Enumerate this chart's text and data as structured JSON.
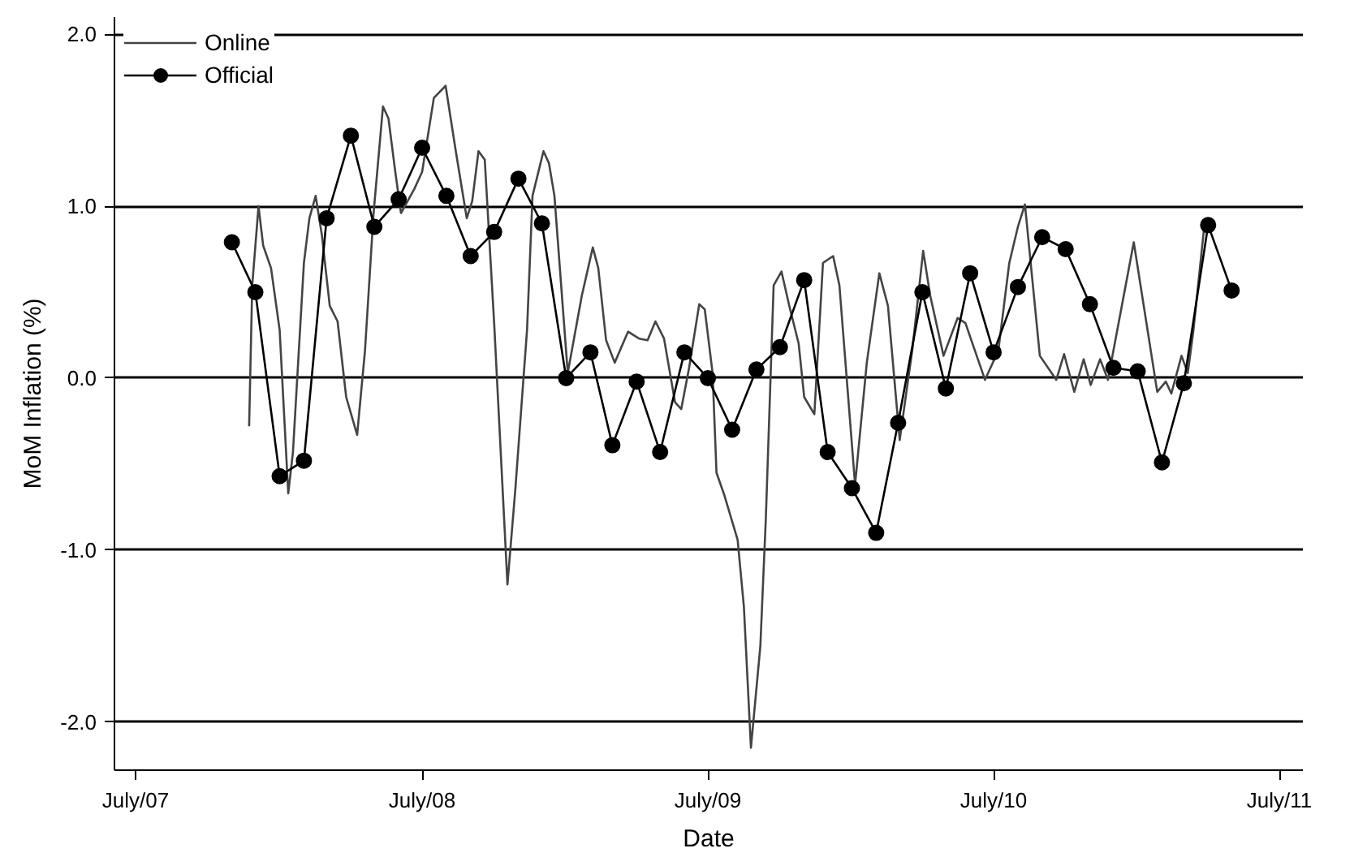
{
  "chart_data": {
    "type": "line",
    "xlabel": "Date",
    "ylabel": "MoM Inflation (%)",
    "xlim": [
      "2007-06-04",
      "2011-07-31"
    ],
    "ylim": [
      -2.28,
      2.1
    ],
    "xticks": [
      {
        "value": "2007-07",
        "label": "July/07"
      },
      {
        "value": "2008-07",
        "label": "July/08"
      },
      {
        "value": "2009-07",
        "label": "July/09"
      },
      {
        "value": "2010-07",
        "label": "July/10"
      },
      {
        "value": "2011-07",
        "label": "July/11"
      }
    ],
    "yticks": [
      {
        "value": -2,
        "label": "-2.0"
      },
      {
        "value": -1,
        "label": "-1.0"
      },
      {
        "value": 0,
        "label": "0.0"
      },
      {
        "value": 1,
        "label": "1.0"
      },
      {
        "value": 2,
        "label": "2.0"
      }
    ],
    "grid": "y",
    "legend": "top left",
    "series": [
      {
        "name": "Online",
        "color": "#444444",
        "marker": "none",
        "x": [
          "2007-11-23",
          "2007-11-27",
          "2007-12-05",
          "2007-12-11",
          "2007-12-21",
          "2008-01-01",
          "2008-01-12",
          "2008-01-18",
          "2008-02-01",
          "2008-02-08",
          "2008-02-16",
          "2008-02-24",
          "2008-03-05",
          "2008-03-15",
          "2008-03-26",
          "2008-04-09",
          "2008-04-19",
          "2008-04-30",
          "2008-05-12",
          "2008-05-19",
          "2008-05-28",
          "2008-06-04",
          "2008-06-21",
          "2008-07-01",
          "2008-07-16",
          "2008-07-31",
          "2008-08-13",
          "2008-08-27",
          "2008-09-03",
          "2008-09-11",
          "2008-09-19",
          "2008-10-01",
          "2008-10-18",
          "2008-10-28",
          "2008-11-12",
          "2008-11-19",
          "2008-12-03",
          "2008-12-10",
          "2008-12-17",
          "2009-01-03",
          "2009-01-21",
          "2009-02-04",
          "2009-02-11",
          "2009-02-21",
          "2009-03-04",
          "2009-03-21",
          "2009-04-04",
          "2009-04-15",
          "2009-04-25",
          "2009-05-06",
          "2009-05-20",
          "2009-05-28",
          "2009-06-07",
          "2009-06-20",
          "2009-06-27",
          "2009-07-07",
          "2009-07-12",
          "2009-07-22",
          "2009-08-08",
          "2009-08-16",
          "2009-08-25",
          "2009-09-06",
          "2009-09-13",
          "2009-09-23",
          "2009-10-03",
          "2009-10-13",
          "2009-10-25",
          "2009-11-01",
          "2009-11-14",
          "2009-11-25",
          "2009-12-08",
          "2009-12-16",
          "2010-01-05",
          "2010-01-20",
          "2010-02-05",
          "2010-02-16",
          "2010-03-03",
          "2010-03-19",
          "2010-04-02",
          "2010-04-11",
          "2010-04-28",
          "2010-05-16",
          "2010-05-26",
          "2010-06-20",
          "2010-07-07",
          "2010-07-21",
          "2010-08-01",
          "2010-08-10",
          "2010-08-29",
          "2010-09-19",
          "2010-09-29",
          "2010-10-12",
          "2010-10-24",
          "2010-11-02",
          "2010-11-14",
          "2010-11-24",
          "2010-12-27",
          "2011-01-26",
          "2011-02-06",
          "2011-02-13",
          "2011-02-26",
          "2011-03-06",
          "2011-03-13",
          "2011-03-27",
          "2011-04-05"
        ],
        "values": [
          -0.28,
          0.54,
          1.0,
          0.77,
          0.64,
          0.28,
          -0.67,
          -0.43,
          0.67,
          0.93,
          1.06,
          0.83,
          0.42,
          0.33,
          -0.11,
          -0.33,
          0.16,
          0.96,
          1.58,
          1.51,
          1.19,
          0.96,
          1.1,
          1.2,
          1.63,
          1.7,
          1.32,
          0.93,
          1.03,
          1.32,
          1.27,
          0.32,
          -1.2,
          -0.65,
          0.28,
          1.06,
          1.32,
          1.25,
          1.06,
          0.03,
          0.48,
          0.76,
          0.64,
          0.22,
          0.09,
          0.27,
          0.23,
          0.22,
          0.33,
          0.23,
          -0.14,
          -0.18,
          0.06,
          0.43,
          0.4,
          0.03,
          -0.55,
          -0.68,
          -0.94,
          -1.33,
          -2.15,
          -1.56,
          -0.82,
          0.54,
          0.62,
          0.42,
          0.2,
          -0.11,
          -0.21,
          0.67,
          0.71,
          0.54,
          -0.62,
          0.09,
          0.61,
          0.42,
          -0.36,
          0.16,
          0.74,
          0.48,
          0.13,
          0.35,
          0.32,
          -0.01,
          0.16,
          0.67,
          0.88,
          1.01,
          0.13,
          -0.01,
          0.14,
          -0.08,
          0.11,
          -0.04,
          0.11,
          -0.01,
          0.79,
          -0.08,
          -0.02,
          -0.09,
          0.13,
          0.03,
          0.27,
          0.88,
          0.91
        ]
      },
      {
        "name": "Official",
        "color": "#000000",
        "marker": "circle",
        "x": [
          "2007-11",
          "2007-12",
          "2008-01",
          "2008-02",
          "2008-03",
          "2008-04",
          "2008-05",
          "2008-06",
          "2008-07",
          "2008-08",
          "2008-09",
          "2008-10",
          "2008-11",
          "2008-12",
          "2009-01",
          "2009-02",
          "2009-03",
          "2009-04",
          "2009-05",
          "2009-06",
          "2009-07",
          "2009-08",
          "2009-09",
          "2009-10",
          "2009-11",
          "2009-12",
          "2010-01",
          "2010-02",
          "2010-03",
          "2010-04",
          "2010-05",
          "2010-06",
          "2010-07",
          "2010-08",
          "2010-09",
          "2010-10",
          "2010-11",
          "2010-12",
          "2011-01",
          "2011-02",
          "2011-03",
          "2011-04",
          "2011-05"
        ],
        "values": [
          0.79,
          0.5,
          -0.57,
          -0.48,
          0.93,
          1.41,
          0.88,
          1.04,
          1.34,
          1.06,
          0.71,
          0.85,
          1.16,
          0.9,
          0.0,
          0.15,
          -0.39,
          -0.02,
          -0.43,
          0.15,
          0.0,
          -0.3,
          0.05,
          0.18,
          0.57,
          -0.43,
          -0.64,
          -0.9,
          -0.26,
          0.5,
          -0.06,
          0.61,
          0.15,
          0.53,
          0.82,
          0.75,
          0.43,
          0.06,
          0.04,
          -0.49,
          -0.03,
          0.89,
          0.51
        ]
      }
    ]
  }
}
